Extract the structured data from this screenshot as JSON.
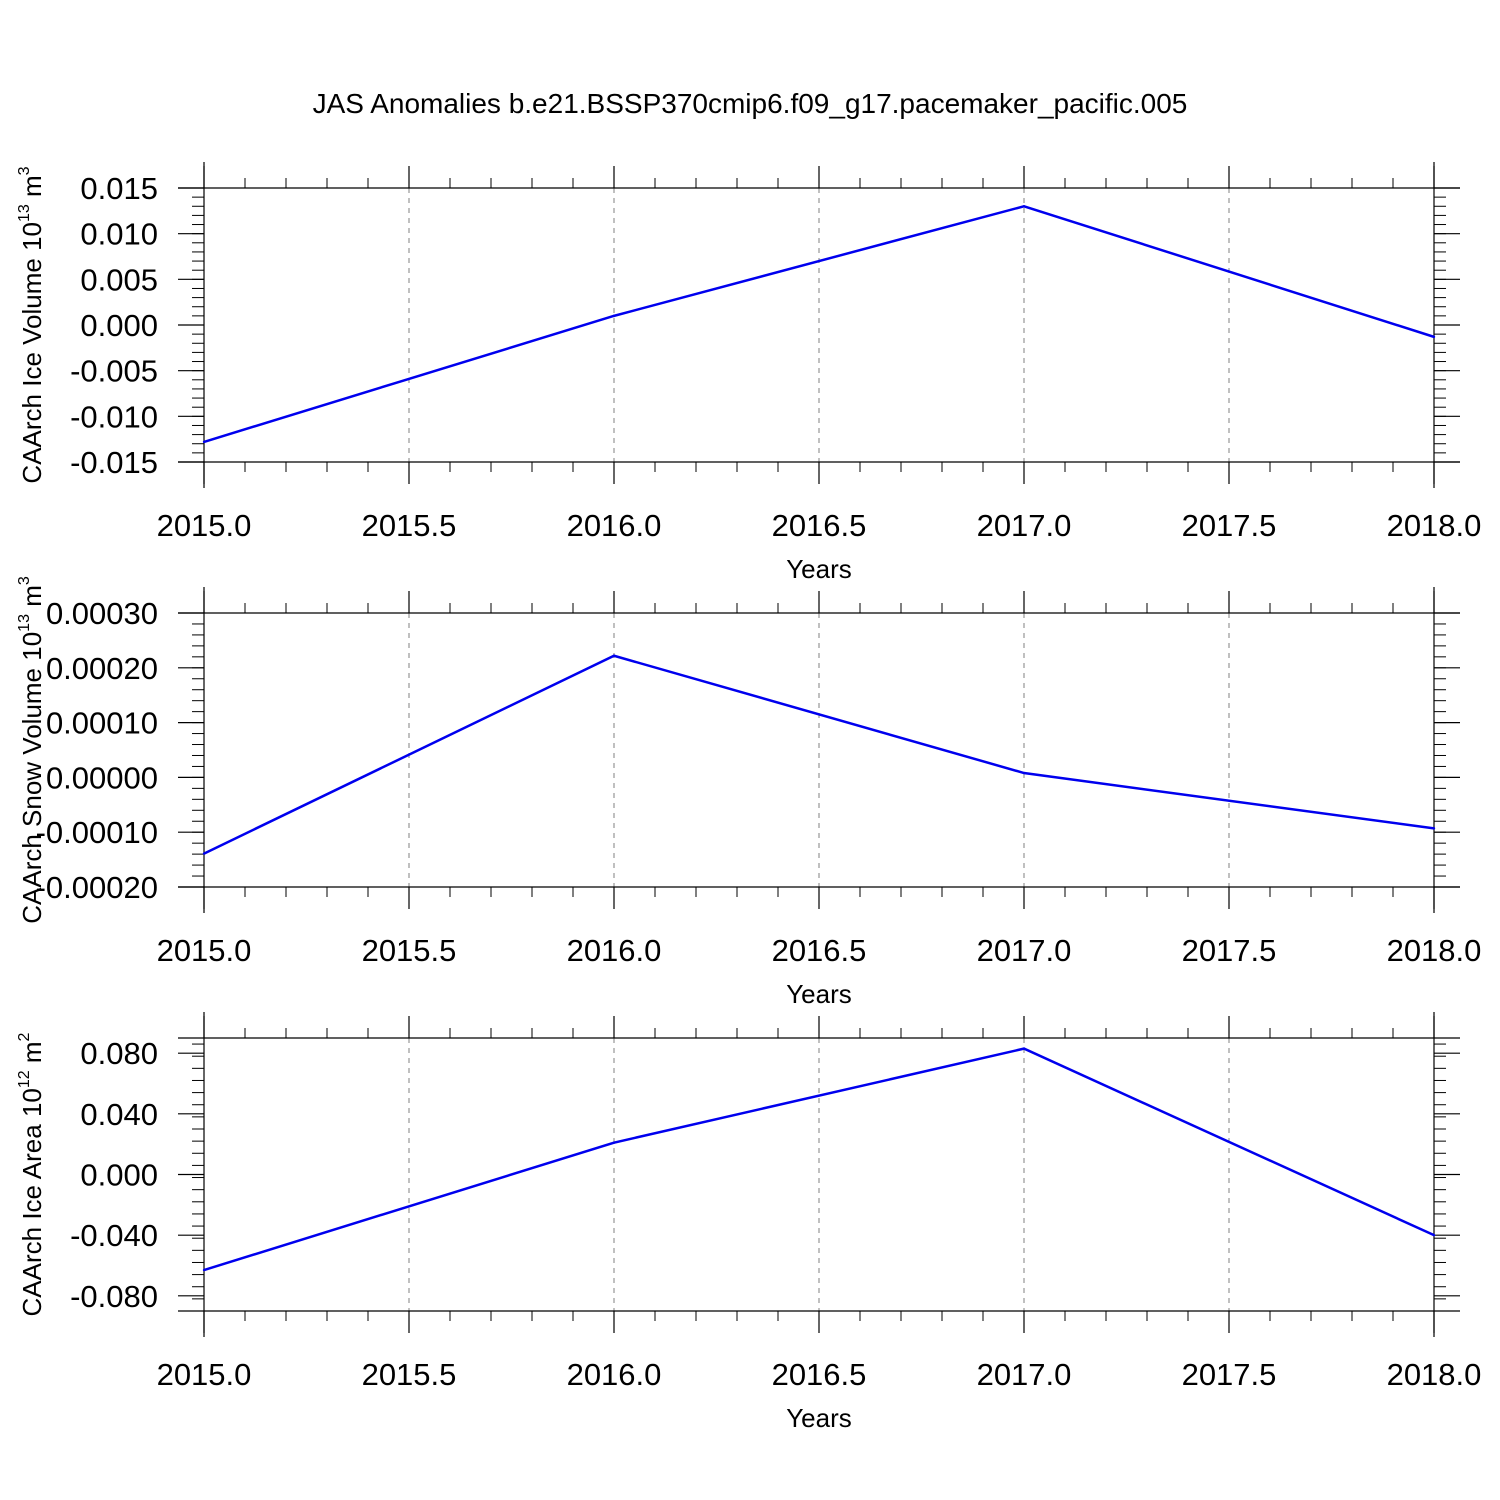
{
  "title": "JAS Anomalies b.e21.BSSP370cmip6.f09_g17.pacemaker_pacific.005",
  "colors": {
    "series": "#0000ee",
    "axis": "#000000",
    "grid": "#808080"
  },
  "chart_data": [
    {
      "type": "line",
      "xlabel": "Years",
      "ylabel": {
        "text": "CAArch Ice Volume 10",
        "sup": "13",
        "unit": " m",
        "unit_sup": "3"
      },
      "xlim": [
        2015.0,
        2018.0
      ],
      "ylim": [
        -0.015,
        0.015
      ],
      "xticks": [
        "2015.0",
        "2015.5",
        "2016.0",
        "2016.5",
        "2017.0",
        "2017.5",
        "2018.0"
      ],
      "yticks": [
        "-0.015",
        "-0.010",
        "-0.005",
        "0.000",
        "0.005",
        "0.010",
        "0.015"
      ],
      "x": [
        2015,
        2016,
        2017,
        2018
      ],
      "values": [
        -0.0128,
        0.001,
        0.013,
        -0.0013
      ]
    },
    {
      "type": "line",
      "xlabel": "Years",
      "ylabel": {
        "text": "CAArch Snow Volume 10",
        "sup": "13",
        "unit": " m",
        "unit_sup": "3"
      },
      "xlim": [
        2015.0,
        2018.0
      ],
      "ylim": [
        -0.0002,
        0.0003
      ],
      "xticks": [
        "2015.0",
        "2015.5",
        "2016.0",
        "2016.5",
        "2017.0",
        "2017.5",
        "2018.0"
      ],
      "yticks": [
        "-0.00020",
        "-0.00010",
        "0.00000",
        "0.00010",
        "0.00020",
        "0.00030"
      ],
      "x": [
        2015,
        2016,
        2017,
        2018
      ],
      "values": [
        -0.000139,
        0.000222,
        8e-06,
        -9.3e-05
      ]
    },
    {
      "type": "line",
      "xlabel": "Years",
      "ylabel": {
        "text": "CAArch Ice Area 10",
        "sup": "12",
        "unit": " m",
        "unit_sup": "2"
      },
      "xlim": [
        2015.0,
        2018.0
      ],
      "ylim": [
        -0.09,
        0.09
      ],
      "xticks": [
        "2015.0",
        "2015.5",
        "2016.0",
        "2016.5",
        "2017.0",
        "2017.5",
        "2018.0"
      ],
      "yticks": [
        "-0.080",
        "-0.040",
        "0.000",
        "0.040",
        "0.080"
      ],
      "x": [
        2015,
        2016,
        2017,
        2018
      ],
      "values": [
        -0.063,
        0.021,
        0.083,
        -0.04
      ]
    }
  ]
}
